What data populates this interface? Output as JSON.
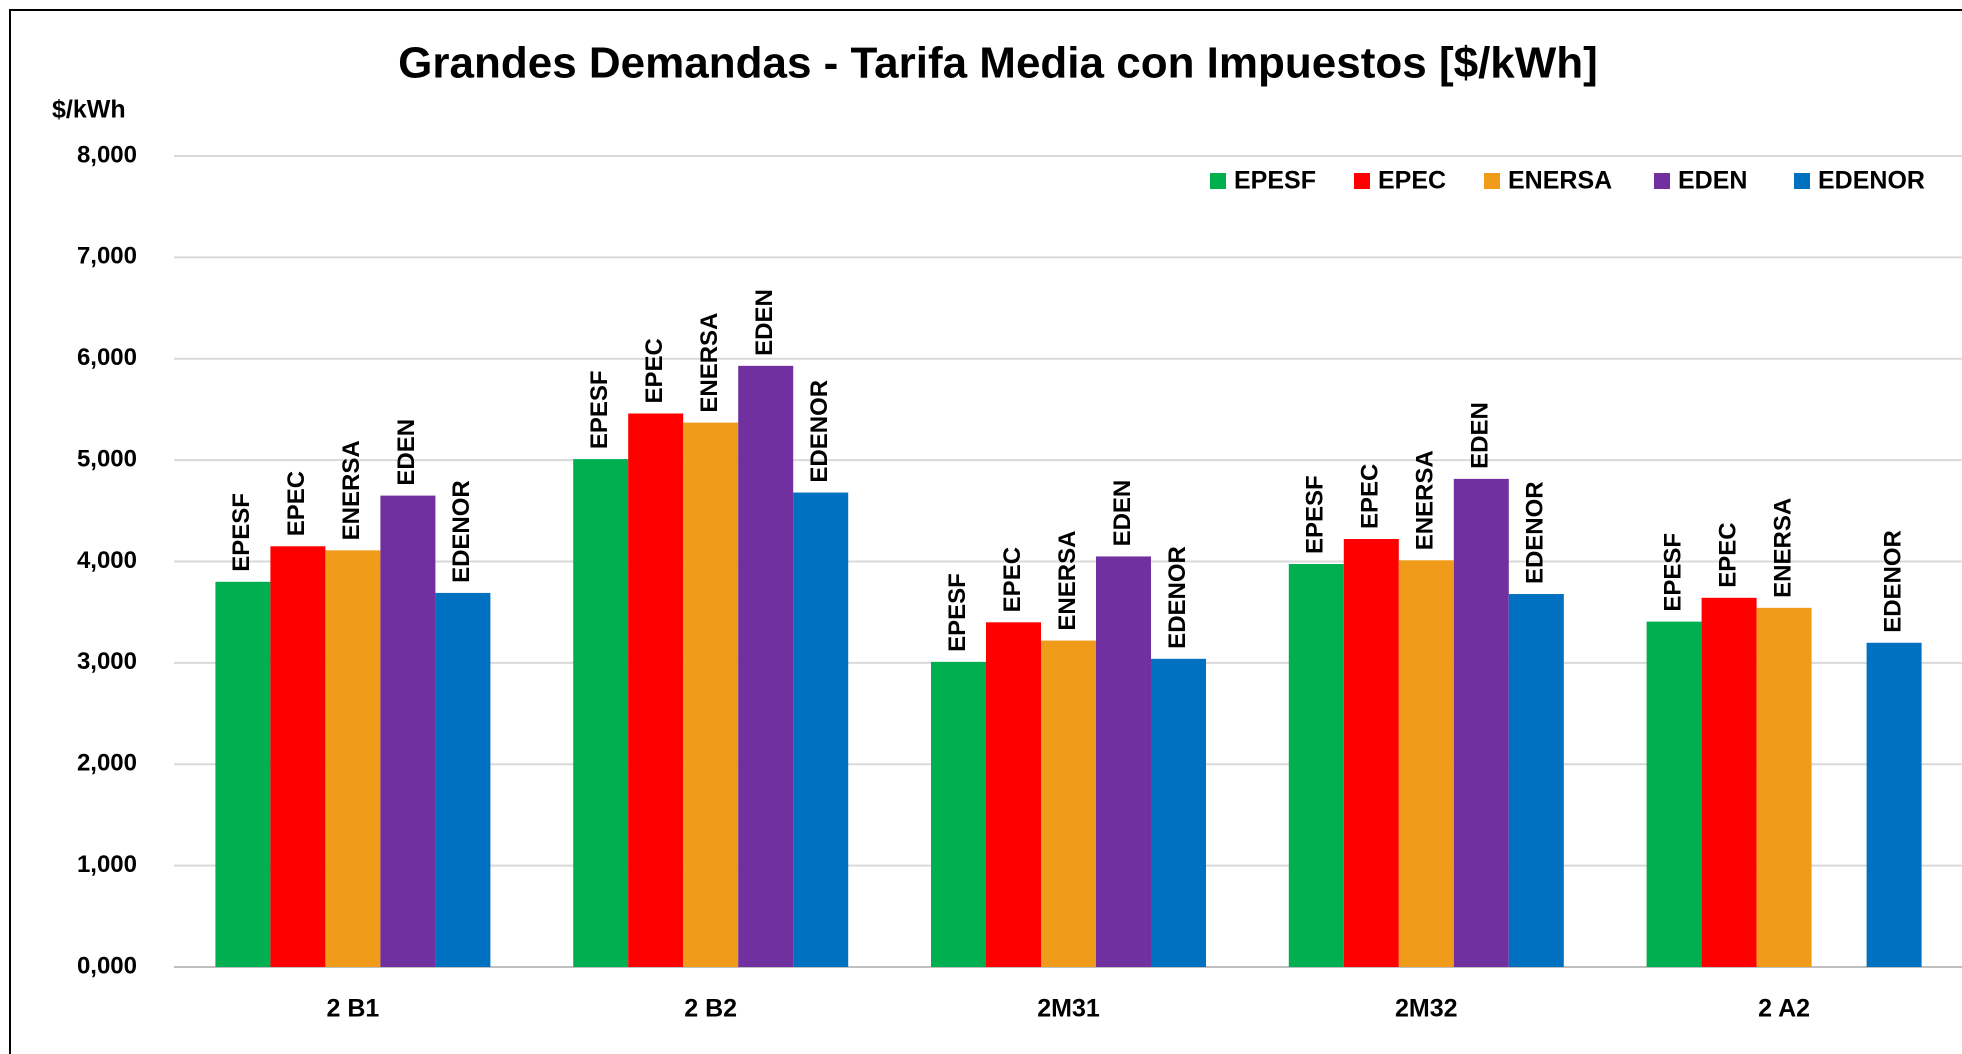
{
  "chart_data": {
    "type": "bar",
    "title": "Grandes Demandas - Tarifa Media con Impuestos [$/kWh]",
    "y_label": "$/kWh",
    "categories": [
      "2 B1",
      "2 B2",
      "2M31",
      "2M32",
      "2 A2"
    ],
    "series": [
      {
        "name": "EPESF",
        "color": "#00b050",
        "values": [
          3800,
          5010,
          3010,
          3975,
          3407
        ]
      },
      {
        "name": "EPEC",
        "color": "#ff0000",
        "values": [
          4150,
          5460,
          3400,
          4222,
          3642
        ]
      },
      {
        "name": "ENERSA",
        "color": "#f09b1a",
        "values": [
          4110,
          5370,
          3220,
          4012,
          3543
        ]
      },
      {
        "name": "EDEN",
        "color": "#7030a0",
        "values": [
          4650,
          5930,
          4050,
          4815,
          null
        ]
      },
      {
        "name": "EDENOR",
        "color": "#0070c0",
        "values": [
          3690,
          4680,
          3040,
          3679,
          3198
        ]
      }
    ],
    "ylim": [
      0,
      8000
    ],
    "yticks": [
      {
        "value": 0,
        "label": "0,000"
      },
      {
        "value": 1000,
        "label": "1,000"
      },
      {
        "value": 2000,
        "label": "2,000"
      },
      {
        "value": 3000,
        "label": "3,000"
      },
      {
        "value": 4000,
        "label": "4,000"
      },
      {
        "value": 5000,
        "label": "5,000"
      },
      {
        "value": 6000,
        "label": "6,000"
      },
      {
        "value": 7000,
        "label": "7,000"
      },
      {
        "value": 8000,
        "label": "8,000"
      }
    ],
    "grid": true,
    "legend": "top-right"
  }
}
